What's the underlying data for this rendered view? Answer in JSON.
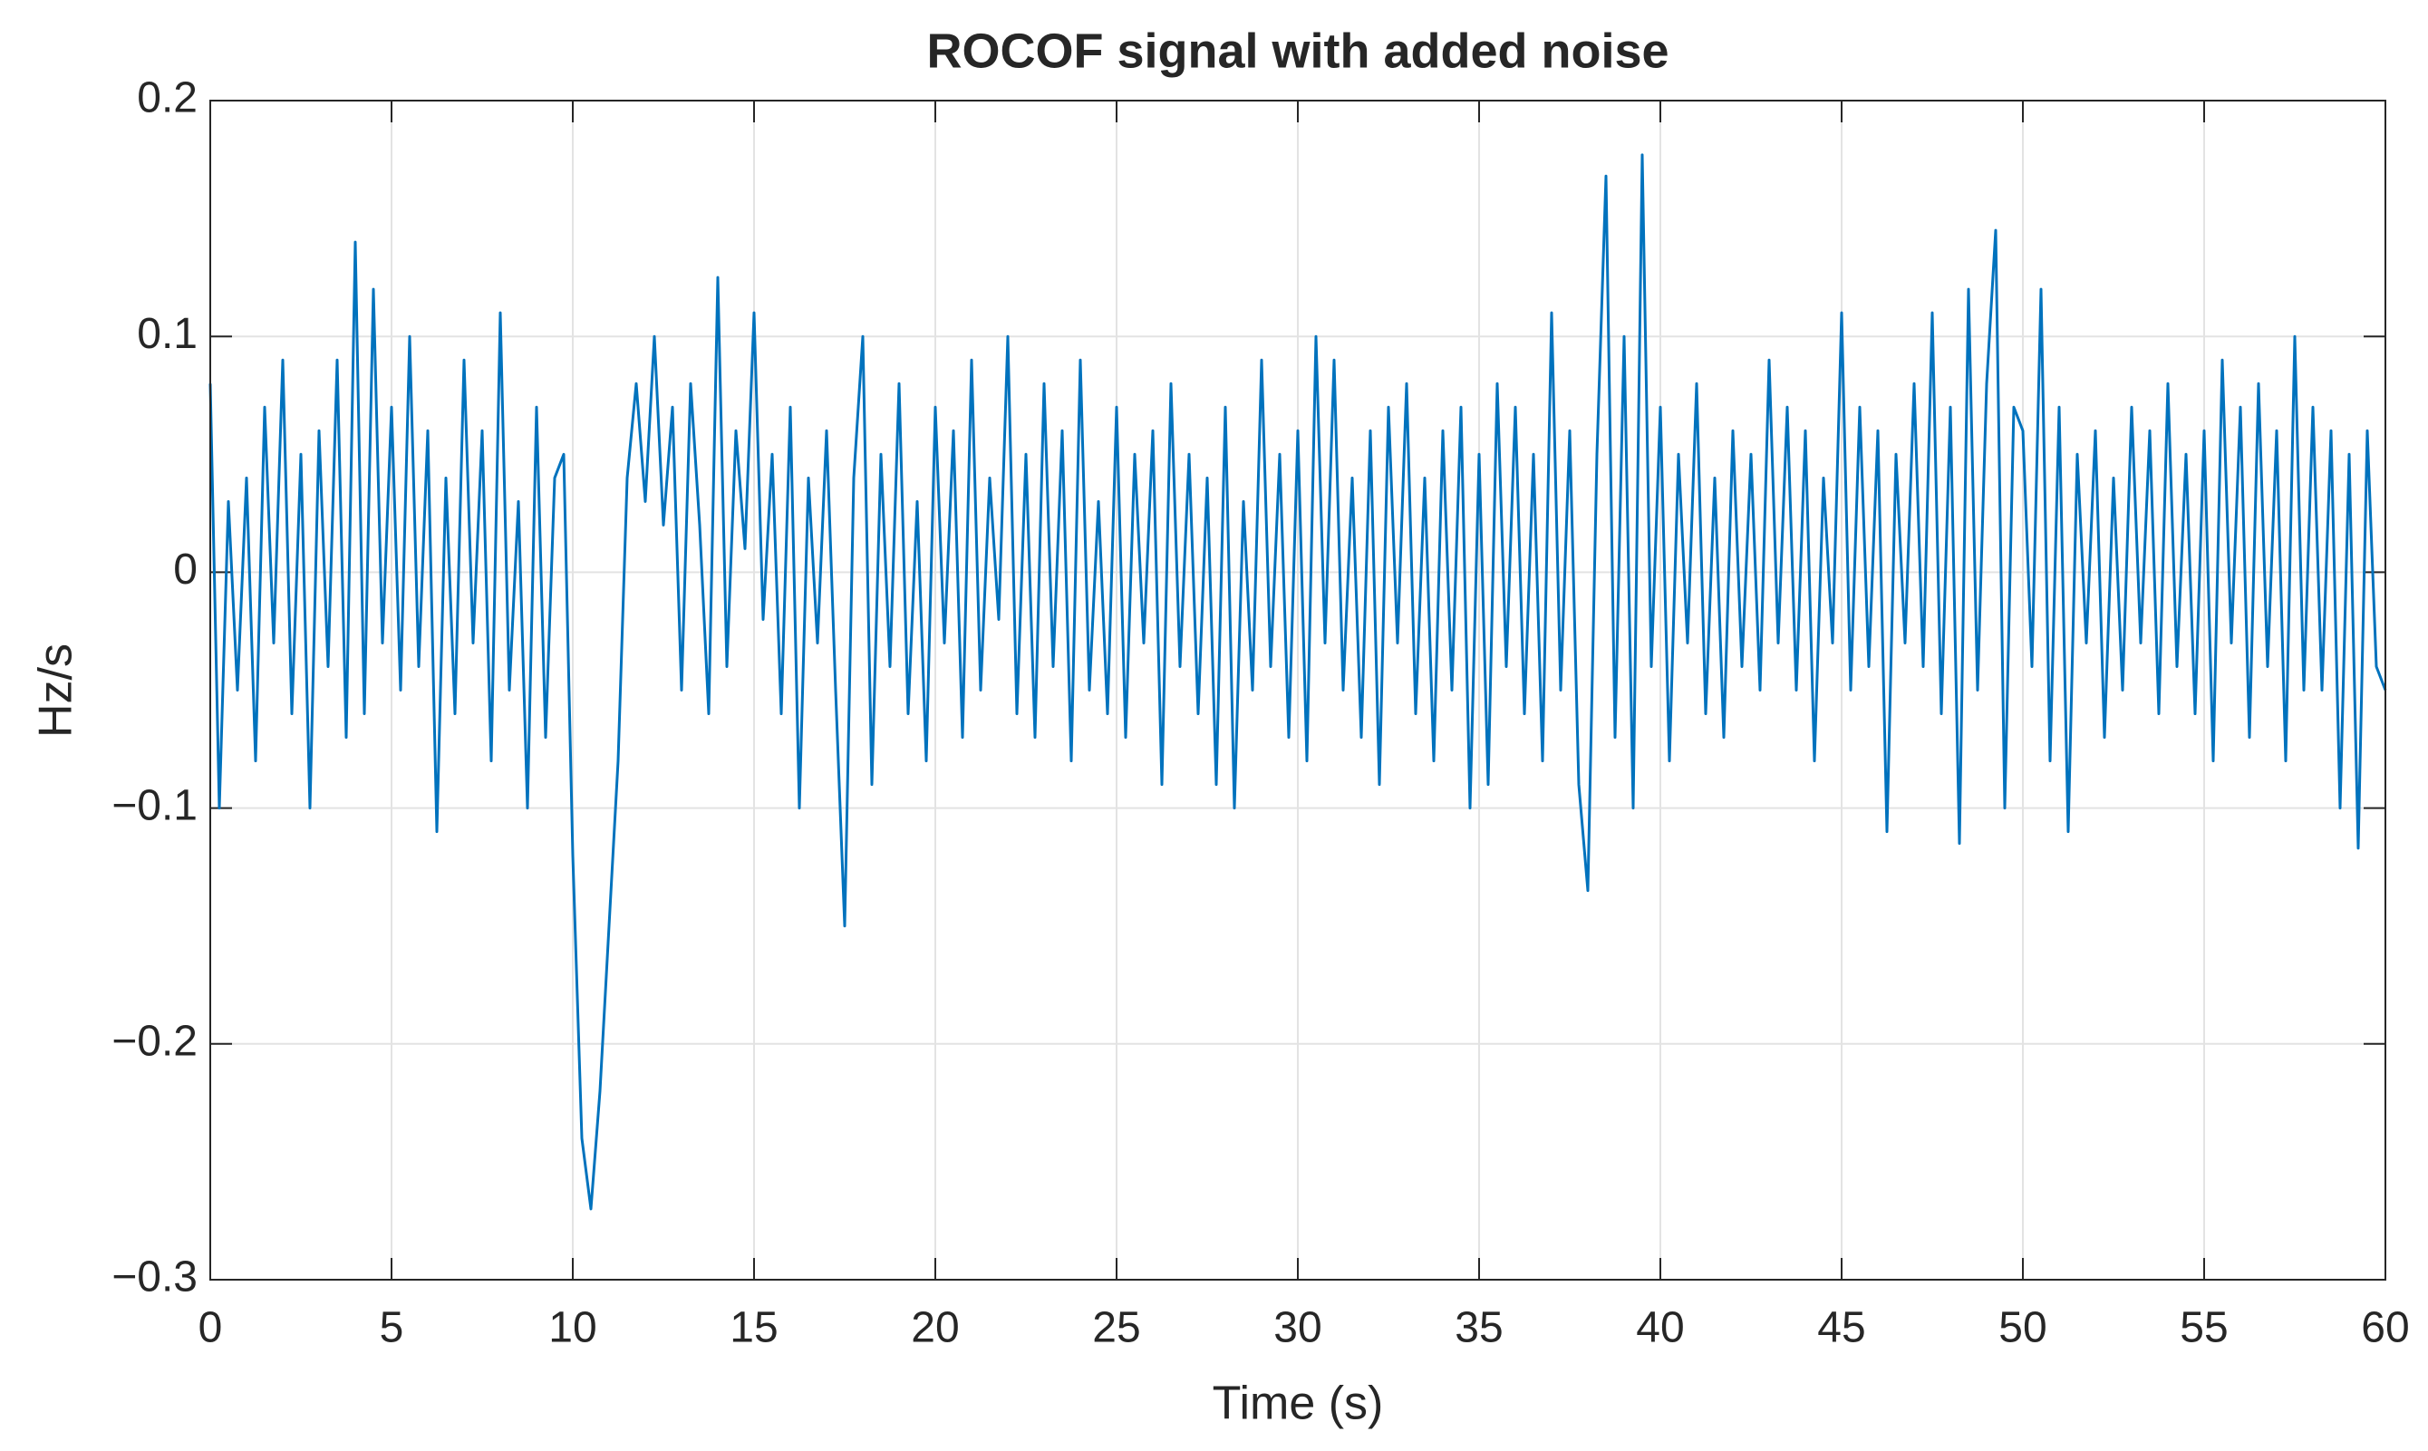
{
  "chart_data": {
    "type": "line",
    "title": "ROCOF signal with added noise",
    "xlabel": "Time (s)",
    "ylabel": "Hz/s",
    "x": [
      0,
      0.25,
      0.5,
      0.75,
      1,
      1.25,
      1.5,
      1.75,
      2,
      2.25,
      2.5,
      2.75,
      3,
      3.25,
      3.5,
      3.75,
      4,
      4.25,
      4.5,
      4.75,
      5,
      5.25,
      5.5,
      5.75,
      6,
      6.25,
      6.5,
      6.75,
      7,
      7.25,
      7.5,
      7.75,
      8,
      8.25,
      8.5,
      8.75,
      9,
      9.25,
      9.5,
      9.75,
      10,
      10.25,
      10.5,
      10.75,
      11,
      11.25,
      11.5,
      11.75,
      12,
      12.25,
      12.5,
      12.75,
      13,
      13.25,
      13.5,
      13.75,
      14,
      14.25,
      14.5,
      14.75,
      15,
      15.25,
      15.5,
      15.75,
      16,
      16.25,
      16.5,
      16.75,
      17,
      17.25,
      17.5,
      17.75,
      18,
      18.25,
      18.5,
      18.75,
      19,
      19.25,
      19.5,
      19.75,
      20,
      20.25,
      20.5,
      20.75,
      21,
      21.25,
      21.5,
      21.75,
      22,
      22.25,
      22.5,
      22.75,
      23,
      23.25,
      23.5,
      23.75,
      24,
      24.25,
      24.5,
      24.75,
      25,
      25.25,
      25.5,
      25.75,
      26,
      26.25,
      26.5,
      26.75,
      27,
      27.25,
      27.5,
      27.75,
      28,
      28.25,
      28.5,
      28.75,
      29,
      29.25,
      29.5,
      29.75,
      30,
      30.25,
      30.5,
      30.75,
      31,
      31.25,
      31.5,
      31.75,
      32,
      32.25,
      32.5,
      32.75,
      33,
      33.25,
      33.5,
      33.75,
      34,
      34.25,
      34.5,
      34.75,
      35,
      35.25,
      35.5,
      35.75,
      36,
      36.25,
      36.5,
      36.75,
      37,
      37.25,
      37.5,
      37.75,
      38,
      38.25,
      38.5,
      38.75,
      39,
      39.25,
      39.5,
      39.75,
      40,
      40.25,
      40.5,
      40.75,
      41,
      41.25,
      41.5,
      41.75,
      42,
      42.25,
      42.5,
      42.75,
      43,
      43.25,
      43.5,
      43.75,
      44,
      44.25,
      44.5,
      44.75,
      45,
      45.25,
      45.5,
      45.75,
      46,
      46.25,
      46.5,
      46.75,
      47,
      47.25,
      47.5,
      47.75,
      48,
      48.25,
      48.5,
      48.75,
      49,
      49.25,
      49.5,
      49.75,
      50,
      50.25,
      50.5,
      50.75,
      51,
      51.25,
      51.5,
      51.75,
      52,
      52.25,
      52.5,
      52.75,
      53,
      53.25,
      53.5,
      53.75,
      54,
      54.25,
      54.5,
      54.75,
      55,
      55.25,
      55.5,
      55.75,
      56,
      56.25,
      56.5,
      56.75,
      57,
      57.25,
      57.5,
      57.75,
      58,
      58.25,
      58.5,
      58.75,
      59,
      59.25,
      59.5,
      59.75,
      60
    ],
    "series": [
      {
        "name": "ROCOF",
        "color": "#0072bd",
        "values": [
          0.08,
          -0.1,
          0.03,
          -0.05,
          0.04,
          -0.08,
          0.07,
          -0.03,
          0.09,
          -0.06,
          0.05,
          -0.1,
          0.06,
          -0.04,
          0.09,
          -0.07,
          0.14,
          -0.06,
          0.12,
          -0.03,
          0.07,
          -0.05,
          0.1,
          -0.04,
          0.06,
          -0.11,
          0.04,
          -0.06,
          0.09,
          -0.03,
          0.06,
          -0.08,
          0.11,
          -0.05,
          0.03,
          -0.1,
          0.07,
          -0.07,
          0.04,
          0.05,
          -0.12,
          -0.24,
          -0.27,
          -0.22,
          -0.15,
          -0.08,
          0.04,
          0.08,
          0.03,
          0.1,
          0.02,
          0.07,
          -0.05,
          0.08,
          0.02,
          -0.06,
          0.125,
          -0.04,
          0.06,
          0.01,
          0.11,
          -0.02,
          0.05,
          -0.06,
          0.07,
          -0.1,
          0.04,
          -0.03,
          0.06,
          -0.05,
          -0.15,
          0.04,
          0.1,
          -0.09,
          0.05,
          -0.04,
          0.08,
          -0.06,
          0.03,
          -0.08,
          0.07,
          -0.03,
          0.06,
          -0.07,
          0.09,
          -0.05,
          0.04,
          -0.02,
          0.1,
          -0.06,
          0.05,
          -0.07,
          0.08,
          -0.04,
          0.06,
          -0.08,
          0.09,
          -0.05,
          0.03,
          -0.06,
          0.07,
          -0.07,
          0.05,
          -0.03,
          0.06,
          -0.09,
          0.08,
          -0.04,
          0.05,
          -0.06,
          0.04,
          -0.09,
          0.07,
          -0.1,
          0.03,
          -0.05,
          0.09,
          -0.04,
          0.05,
          -0.07,
          0.06,
          -0.08,
          0.1,
          -0.03,
          0.09,
          -0.05,
          0.04,
          -0.07,
          0.06,
          -0.09,
          0.07,
          -0.03,
          0.08,
          -0.06,
          0.04,
          -0.08,
          0.06,
          -0.05,
          0.07,
          -0.1,
          0.05,
          -0.09,
          0.08,
          -0.04,
          0.07,
          -0.06,
          0.05,
          -0.08,
          0.11,
          -0.05,
          0.06,
          -0.09,
          -0.135,
          0.05,
          0.168,
          -0.07,
          0.1,
          -0.1,
          0.177,
          -0.04,
          0.07,
          -0.08,
          0.05,
          -0.03,
          0.08,
          -0.06,
          0.04,
          -0.07,
          0.06,
          -0.04,
          0.05,
          -0.05,
          0.09,
          -0.03,
          0.07,
          -0.05,
          0.06,
          -0.08,
          0.04,
          -0.03,
          0.11,
          -0.05,
          0.07,
          -0.04,
          0.06,
          -0.11,
          0.05,
          -0.03,
          0.08,
          -0.04,
          0.11,
          -0.06,
          0.07,
          -0.115,
          0.12,
          -0.05,
          0.08,
          0.145,
          -0.1,
          0.07,
          0.06,
          -0.04,
          0.12,
          -0.08,
          0.07,
          -0.11,
          0.05,
          -0.03,
          0.06,
          -0.07,
          0.04,
          -0.05,
          0.07,
          -0.03,
          0.06,
          -0.06,
          0.08,
          -0.04,
          0.05,
          -0.06,
          0.06,
          -0.08,
          0.09,
          -0.03,
          0.07,
          -0.07,
          0.08,
          -0.04,
          0.06,
          -0.08,
          0.1,
          -0.05,
          0.07,
          -0.05,
          0.06,
          -0.1,
          0.05,
          -0.117,
          0.06,
          -0.04,
          -0.05
        ]
      }
    ],
    "xlim": [
      0,
      60
    ],
    "xticks": [
      0,
      5,
      10,
      15,
      20,
      25,
      30,
      35,
      40,
      45,
      50,
      55,
      60
    ],
    "ylim": [
      -0.3,
      0.2
    ],
    "yticks": [
      {
        "value": -0.3,
        "label": "−0.3"
      },
      {
        "value": -0.2,
        "label": "−0.2"
      },
      {
        "value": -0.1,
        "label": "−0.1"
      },
      0,
      0.1,
      0.2
    ],
    "grid": true
  }
}
